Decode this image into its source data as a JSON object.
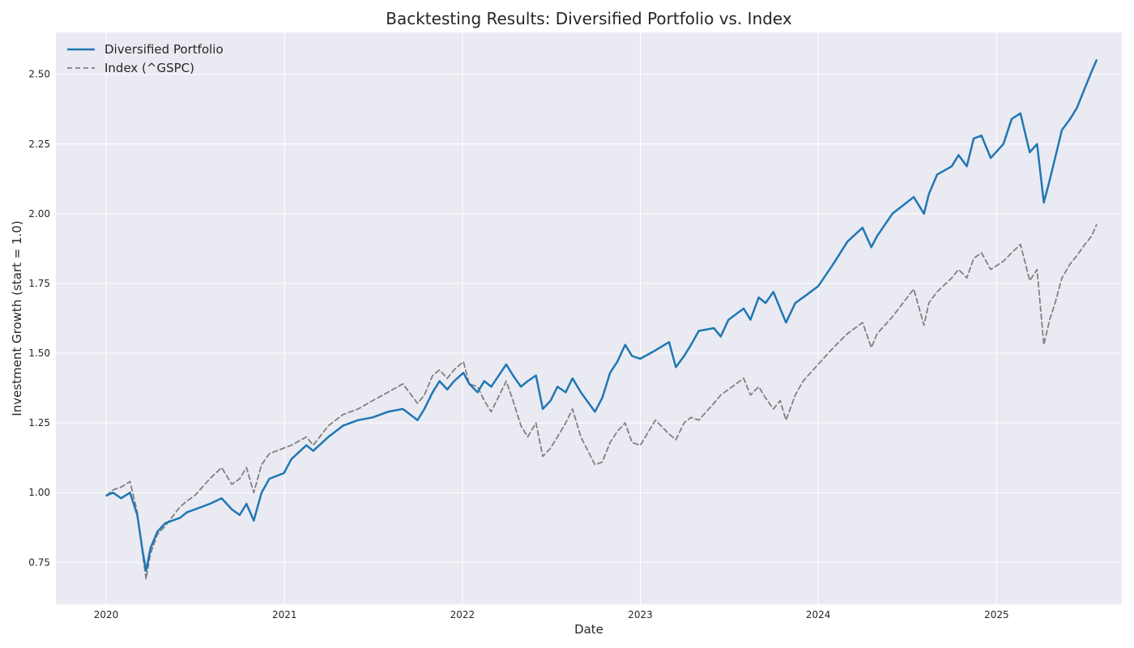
{
  "chart_data": {
    "type": "line",
    "title": "Backtesting Results: Diversified Portfolio vs. Index",
    "xlabel": "Date",
    "ylabel": "Investment Growth (start = 1.0)",
    "xlim": [
      "2019-09-20",
      "2025-09-15"
    ],
    "ylim": [
      0.6,
      2.65
    ],
    "x_ticks": [
      "2020",
      "2021",
      "2022",
      "2023",
      "2024",
      "2025"
    ],
    "y_ticks": [
      "0.75",
      "1.00",
      "1.25",
      "1.50",
      "1.75",
      "2.00",
      "2.25",
      "2.50"
    ],
    "grid": true,
    "legend_position": "top-left",
    "background_color": "#eaeaf2",
    "series": [
      {
        "name": "Diversified Portfolio",
        "color": "#1f77b4",
        "style": "solid",
        "points": [
          [
            "2020-01-02",
            0.99
          ],
          [
            "2020-01-15",
            1.0
          ],
          [
            "2020-02-01",
            0.98
          ],
          [
            "2020-02-19",
            1.0
          ],
          [
            "2020-03-05",
            0.92
          ],
          [
            "2020-03-16",
            0.79
          ],
          [
            "2020-03-23",
            0.72
          ],
          [
            "2020-04-01",
            0.8
          ],
          [
            "2020-04-15",
            0.86
          ],
          [
            "2020-05-01",
            0.89
          ],
          [
            "2020-06-01",
            0.91
          ],
          [
            "2020-06-15",
            0.93
          ],
          [
            "2020-07-01",
            0.94
          ],
          [
            "2020-08-01",
            0.96
          ],
          [
            "2020-08-25",
            0.98
          ],
          [
            "2020-09-15",
            0.94
          ],
          [
            "2020-10-01",
            0.92
          ],
          [
            "2020-10-15",
            0.96
          ],
          [
            "2020-10-30",
            0.9
          ],
          [
            "2020-11-15",
            1.0
          ],
          [
            "2020-12-01",
            1.05
          ],
          [
            "2020-12-31",
            1.07
          ],
          [
            "2021-01-15",
            1.12
          ],
          [
            "2021-02-15",
            1.17
          ],
          [
            "2021-03-01",
            1.15
          ],
          [
            "2021-04-01",
            1.2
          ],
          [
            "2021-05-01",
            1.24
          ],
          [
            "2021-06-01",
            1.26
          ],
          [
            "2021-07-01",
            1.27
          ],
          [
            "2021-08-01",
            1.29
          ],
          [
            "2021-09-01",
            1.3
          ],
          [
            "2021-10-01",
            1.26
          ],
          [
            "2021-10-15",
            1.3
          ],
          [
            "2021-11-01",
            1.36
          ],
          [
            "2021-11-15",
            1.4
          ],
          [
            "2021-12-01",
            1.37
          ],
          [
            "2021-12-15",
            1.4
          ],
          [
            "2022-01-03",
            1.43
          ],
          [
            "2022-01-15",
            1.39
          ],
          [
            "2022-02-01",
            1.36
          ],
          [
            "2022-02-15",
            1.4
          ],
          [
            "2022-03-01",
            1.38
          ],
          [
            "2022-04-01",
            1.46
          ],
          [
            "2022-04-15",
            1.42
          ],
          [
            "2022-05-01",
            1.38
          ],
          [
            "2022-05-15",
            1.4
          ],
          [
            "2022-06-01",
            1.42
          ],
          [
            "2022-06-15",
            1.3
          ],
          [
            "2022-07-01",
            1.33
          ],
          [
            "2022-07-15",
            1.38
          ],
          [
            "2022-08-01",
            1.36
          ],
          [
            "2022-08-15",
            1.41
          ],
          [
            "2022-09-01",
            1.36
          ],
          [
            "2022-09-30",
            1.29
          ],
          [
            "2022-10-15",
            1.34
          ],
          [
            "2022-10-31",
            1.43
          ],
          [
            "2022-11-15",
            1.47
          ],
          [
            "2022-12-01",
            1.53
          ],
          [
            "2022-12-15",
            1.49
          ],
          [
            "2023-01-01",
            1.48
          ],
          [
            "2023-02-01",
            1.51
          ],
          [
            "2023-03-01",
            1.54
          ],
          [
            "2023-03-15",
            1.45
          ],
          [
            "2023-04-01",
            1.49
          ],
          [
            "2023-04-15",
            1.53
          ],
          [
            "2023-05-01",
            1.58
          ],
          [
            "2023-06-01",
            1.59
          ],
          [
            "2023-06-15",
            1.56
          ],
          [
            "2023-07-01",
            1.62
          ],
          [
            "2023-08-01",
            1.66
          ],
          [
            "2023-08-15",
            1.62
          ],
          [
            "2023-09-01",
            1.7
          ],
          [
            "2023-09-15",
            1.68
          ],
          [
            "2023-10-01",
            1.72
          ],
          [
            "2023-10-15",
            1.66
          ],
          [
            "2023-10-27",
            1.61
          ],
          [
            "2023-11-15",
            1.68
          ],
          [
            "2023-12-01",
            1.7
          ],
          [
            "2024-01-01",
            1.74
          ],
          [
            "2024-02-01",
            1.82
          ],
          [
            "2024-03-01",
            1.9
          ],
          [
            "2024-04-01",
            1.95
          ],
          [
            "2024-04-19",
            1.88
          ],
          [
            "2024-05-01",
            1.92
          ],
          [
            "2024-06-01",
            2.0
          ],
          [
            "2024-07-15",
            2.06
          ],
          [
            "2024-08-05",
            2.0
          ],
          [
            "2024-08-15",
            2.07
          ],
          [
            "2024-09-01",
            2.14
          ],
          [
            "2024-10-01",
            2.17
          ],
          [
            "2024-10-15",
            2.21
          ],
          [
            "2024-11-01",
            2.17
          ],
          [
            "2024-11-15",
            2.27
          ],
          [
            "2024-12-01",
            2.28
          ],
          [
            "2024-12-20",
            2.2
          ],
          [
            "2025-01-15",
            2.25
          ],
          [
            "2025-02-01",
            2.34
          ],
          [
            "2025-02-19",
            2.36
          ],
          [
            "2025-03-10",
            2.22
          ],
          [
            "2025-03-25",
            2.25
          ],
          [
            "2025-04-08",
            2.04
          ],
          [
            "2025-04-20",
            2.12
          ],
          [
            "2025-05-01",
            2.2
          ],
          [
            "2025-05-15",
            2.3
          ],
          [
            "2025-06-01",
            2.34
          ],
          [
            "2025-06-15",
            2.38
          ],
          [
            "2025-07-01",
            2.45
          ],
          [
            "2025-07-15",
            2.51
          ],
          [
            "2025-07-25",
            2.55
          ]
        ]
      },
      {
        "name": "Index (^GSPC)",
        "color": "#808080",
        "style": "dashed",
        "points": [
          [
            "2020-01-02",
            0.99
          ],
          [
            "2020-01-15",
            1.01
          ],
          [
            "2020-02-01",
            1.02
          ],
          [
            "2020-02-19",
            1.04
          ],
          [
            "2020-03-05",
            0.93
          ],
          [
            "2020-03-16",
            0.78
          ],
          [
            "2020-03-23",
            0.69
          ],
          [
            "2020-04-01",
            0.78
          ],
          [
            "2020-04-15",
            0.85
          ],
          [
            "2020-05-01",
            0.88
          ],
          [
            "2020-06-01",
            0.95
          ],
          [
            "2020-06-15",
            0.97
          ],
          [
            "2020-07-01",
            0.99
          ],
          [
            "2020-08-01",
            1.05
          ],
          [
            "2020-08-25",
            1.09
          ],
          [
            "2020-09-15",
            1.03
          ],
          [
            "2020-10-01",
            1.05
          ],
          [
            "2020-10-15",
            1.09
          ],
          [
            "2020-10-30",
            1.0
          ],
          [
            "2020-11-15",
            1.1
          ],
          [
            "2020-12-01",
            1.14
          ],
          [
            "2020-12-31",
            1.16
          ],
          [
            "2021-01-15",
            1.17
          ],
          [
            "2021-02-15",
            1.2
          ],
          [
            "2021-03-01",
            1.17
          ],
          [
            "2021-04-01",
            1.24
          ],
          [
            "2021-05-01",
            1.28
          ],
          [
            "2021-06-01",
            1.3
          ],
          [
            "2021-07-01",
            1.33
          ],
          [
            "2021-08-01",
            1.36
          ],
          [
            "2021-09-01",
            1.39
          ],
          [
            "2021-10-01",
            1.32
          ],
          [
            "2021-10-15",
            1.35
          ],
          [
            "2021-11-01",
            1.42
          ],
          [
            "2021-11-15",
            1.44
          ],
          [
            "2021-12-01",
            1.41
          ],
          [
            "2021-12-15",
            1.44
          ],
          [
            "2022-01-03",
            1.47
          ],
          [
            "2022-01-15",
            1.39
          ],
          [
            "2022-02-01",
            1.38
          ],
          [
            "2022-02-15",
            1.33
          ],
          [
            "2022-03-01",
            1.29
          ],
          [
            "2022-04-01",
            1.4
          ],
          [
            "2022-04-15",
            1.33
          ],
          [
            "2022-05-01",
            1.24
          ],
          [
            "2022-05-15",
            1.2
          ],
          [
            "2022-06-01",
            1.25
          ],
          [
            "2022-06-15",
            1.13
          ],
          [
            "2022-07-01",
            1.16
          ],
          [
            "2022-07-15",
            1.2
          ],
          [
            "2022-08-01",
            1.25
          ],
          [
            "2022-08-15",
            1.3
          ],
          [
            "2022-09-01",
            1.2
          ],
          [
            "2022-09-30",
            1.1
          ],
          [
            "2022-10-15",
            1.11
          ],
          [
            "2022-10-31",
            1.18
          ],
          [
            "2022-11-15",
            1.22
          ],
          [
            "2022-12-01",
            1.25
          ],
          [
            "2022-12-15",
            1.18
          ],
          [
            "2023-01-01",
            1.17
          ],
          [
            "2023-02-01",
            1.26
          ],
          [
            "2023-03-01",
            1.21
          ],
          [
            "2023-03-15",
            1.19
          ],
          [
            "2023-04-01",
            1.25
          ],
          [
            "2023-04-15",
            1.27
          ],
          [
            "2023-05-01",
            1.26
          ],
          [
            "2023-06-01",
            1.32
          ],
          [
            "2023-06-15",
            1.35
          ],
          [
            "2023-07-01",
            1.37
          ],
          [
            "2023-08-01",
            1.41
          ],
          [
            "2023-08-15",
            1.35
          ],
          [
            "2023-09-01",
            1.38
          ],
          [
            "2023-09-15",
            1.34
          ],
          [
            "2023-10-01",
            1.3
          ],
          [
            "2023-10-15",
            1.33
          ],
          [
            "2023-10-27",
            1.26
          ],
          [
            "2023-11-15",
            1.35
          ],
          [
            "2023-12-01",
            1.4
          ],
          [
            "2024-01-01",
            1.46
          ],
          [
            "2024-02-01",
            1.52
          ],
          [
            "2024-03-01",
            1.57
          ],
          [
            "2024-04-01",
            1.61
          ],
          [
            "2024-04-19",
            1.52
          ],
          [
            "2024-05-01",
            1.57
          ],
          [
            "2024-06-01",
            1.63
          ],
          [
            "2024-07-15",
            1.73
          ],
          [
            "2024-08-05",
            1.6
          ],
          [
            "2024-08-15",
            1.68
          ],
          [
            "2024-09-01",
            1.72
          ],
          [
            "2024-10-01",
            1.77
          ],
          [
            "2024-10-15",
            1.8
          ],
          [
            "2024-11-01",
            1.77
          ],
          [
            "2024-11-15",
            1.84
          ],
          [
            "2024-12-01",
            1.86
          ],
          [
            "2024-12-20",
            1.8
          ],
          [
            "2025-01-15",
            1.83
          ],
          [
            "2025-02-01",
            1.86
          ],
          [
            "2025-02-19",
            1.89
          ],
          [
            "2025-03-10",
            1.76
          ],
          [
            "2025-03-25",
            1.8
          ],
          [
            "2025-04-08",
            1.53
          ],
          [
            "2025-04-20",
            1.62
          ],
          [
            "2025-05-01",
            1.68
          ],
          [
            "2025-05-15",
            1.77
          ],
          [
            "2025-06-01",
            1.82
          ],
          [
            "2025-06-15",
            1.85
          ],
          [
            "2025-07-01",
            1.89
          ],
          [
            "2025-07-15",
            1.92
          ],
          [
            "2025-07-25",
            1.96
          ]
        ]
      }
    ]
  }
}
